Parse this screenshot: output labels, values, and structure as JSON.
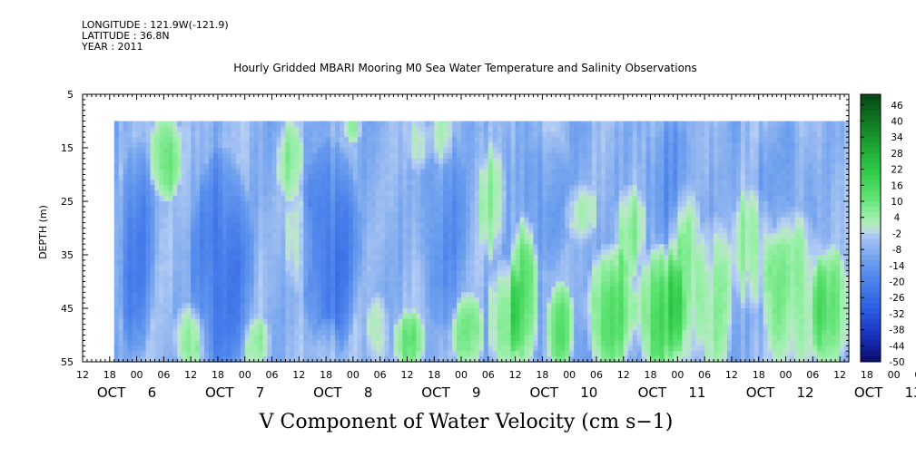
{
  "header": {
    "longitude": "LONGITUDE : 121.9W(-121.9)",
    "latitude": "LATITUDE : 36.8N",
    "year": "YEAR : 2011"
  },
  "chart_data": {
    "type": "heatmap",
    "title": "Hourly Gridded MBARI Mooring M0 Sea Water Temperature and Salinity Observations",
    "xlabel": "V Component of Water Velocity (cm s−1)",
    "ylabel": "DEPTH (m)",
    "x_unit": "hours since OCT 5 12:00",
    "xlim": [
      0,
      170
    ],
    "ylim": [
      5,
      55
    ],
    "y_inverted": true,
    "data_x_start": 7,
    "data_depth_top": 10,
    "data_depth_bottom": 55,
    "y_ticks": [
      5,
      15,
      25,
      35,
      45,
      55
    ],
    "x_hour_labels": [
      "12",
      "18",
      "00",
      "06",
      "12",
      "18",
      "00",
      "06",
      "12",
      "18",
      "00",
      "06",
      "12",
      "18",
      "00",
      "06",
      "12",
      "18",
      "00",
      "06",
      "12",
      "18",
      "00",
      "06",
      "12",
      "18",
      "00",
      "06",
      "12",
      "18",
      "00",
      "06",
      "12"
    ],
    "x_date_labels": [
      {
        "month": "OCT",
        "day": "6"
      },
      {
        "month": "OCT",
        "day": "7"
      },
      {
        "month": "OCT",
        "day": "8"
      },
      {
        "month": "OCT",
        "day": "9"
      },
      {
        "month": "OCT",
        "day": "10"
      },
      {
        "month": "OCT",
        "day": "11"
      },
      {
        "month": "OCT",
        "day": "12"
      },
      {
        "month": "OCT",
        "day": "13"
      }
    ],
    "colorbar": {
      "min": -50,
      "max": 50,
      "step": 2,
      "labels": [
        "46",
        "40",
        "34",
        "28",
        "22",
        "16",
        "10",
        "4",
        "-2",
        "-8",
        "-14",
        "-20",
        "-26",
        "-32",
        "-38",
        "-44",
        "-50"
      ]
    },
    "green_features": [
      {
        "x0": 16,
        "x1": 21,
        "d0": 10,
        "d1": 23,
        "v": 10
      },
      {
        "x0": 21,
        "x1": 26,
        "d0": 46,
        "d1": 55,
        "v": 6
      },
      {
        "x0": 37,
        "x1": 41,
        "d0": 48,
        "d1": 55,
        "v": 3
      },
      {
        "x0": 44,
        "x1": 48,
        "d0": 12,
        "d1": 23,
        "v": 3
      },
      {
        "x0": 46,
        "x1": 50,
        "d0": 25,
        "d1": 40,
        "v": 2
      },
      {
        "x0": 53,
        "x1": 56,
        "d0": 48,
        "d1": 55,
        "v": 3
      },
      {
        "x0": 59,
        "x1": 61,
        "d0": 10,
        "d1": 13,
        "v": 3
      },
      {
        "x0": 64,
        "x1": 67,
        "d0": 44,
        "d1": 55,
        "v": 4
      },
      {
        "x0": 70,
        "x1": 75,
        "d0": 47,
        "d1": 55,
        "v": 8
      },
      {
        "x0": 73,
        "x1": 76,
        "d0": 10,
        "d1": 18,
        "v": 2
      },
      {
        "x0": 78,
        "x1": 81,
        "d0": 10,
        "d1": 17,
        "v": 3
      },
      {
        "x0": 83,
        "x1": 88,
        "d0": 44,
        "d1": 55,
        "v": 8
      },
      {
        "x0": 89,
        "x1": 93,
        "d0": 17,
        "d1": 34,
        "v": 4
      },
      {
        "x0": 91,
        "x1": 96,
        "d0": 38,
        "d1": 55,
        "v": 8
      },
      {
        "x0": 96,
        "x1": 100,
        "d0": 31,
        "d1": 55,
        "v": 12
      },
      {
        "x0": 104,
        "x1": 108,
        "d0": 42,
        "d1": 55,
        "v": 9
      },
      {
        "x0": 108,
        "x1": 113,
        "d0": 23,
        "d1": 31,
        "v": 3
      },
      {
        "x0": 113,
        "x1": 121,
        "d0": 36,
        "d1": 55,
        "v": 12
      },
      {
        "x0": 119,
        "x1": 124,
        "d0": 24,
        "d1": 37,
        "v": 4
      },
      {
        "x0": 124,
        "x1": 132,
        "d0": 36,
        "d1": 55,
        "v": 14
      },
      {
        "x0": 131,
        "x1": 137,
        "d0": 26,
        "d1": 55,
        "v": 5
      },
      {
        "x0": 137,
        "x1": 143,
        "d0": 31,
        "d1": 55,
        "v": 4
      },
      {
        "x0": 145,
        "x1": 152,
        "d0": 25,
        "d1": 43,
        "v": 4
      },
      {
        "x0": 153,
        "x1": 163,
        "d0": 30,
        "d1": 55,
        "v": 6
      },
      {
        "x0": 163,
        "x1": 169,
        "d0": 36,
        "d1": 55,
        "v": 9
      }
    ],
    "strong_blue_features": [
      {
        "x0": 9,
        "x1": 15,
        "d0": 18,
        "d1": 50,
        "v": -20
      },
      {
        "x0": 26,
        "x1": 36,
        "d0": 20,
        "d1": 55,
        "v": -24
      },
      {
        "x0": 50,
        "x1": 60,
        "d0": 18,
        "d1": 50,
        "v": -22
      },
      {
        "x0": 76,
        "x1": 84,
        "d0": 15,
        "d1": 45,
        "v": -16
      },
      {
        "x0": 99,
        "x1": 107,
        "d0": 15,
        "d1": 35,
        "v": -14
      },
      {
        "x0": 126,
        "x1": 134,
        "d0": 10,
        "d1": 30,
        "v": -14
      },
      {
        "x0": 150,
        "x1": 160,
        "d0": 12,
        "d1": 30,
        "v": -12
      }
    ]
  }
}
